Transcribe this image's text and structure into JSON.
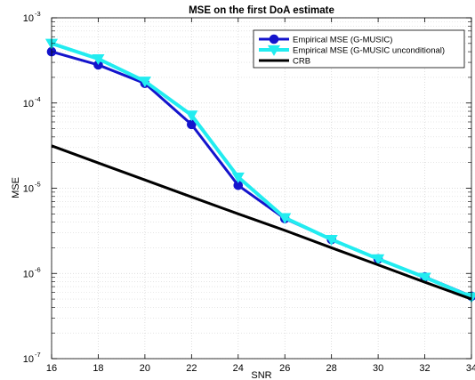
{
  "chart_data": {
    "type": "line",
    "title": "MSE on the first DoA estimate",
    "xlabel": "SNR",
    "ylabel": "MSE",
    "xlim": [
      16,
      34
    ],
    "ylim": [
      1e-07,
      0.001
    ],
    "yscale": "log",
    "grid": true,
    "minor_grid": true,
    "legend_position": "top-right",
    "x_ticks": [
      16,
      18,
      20,
      22,
      24,
      26,
      28,
      30,
      32,
      34
    ],
    "y_ticks": [
      {
        "value": 1e-07,
        "base": "10",
        "exp": "-7"
      },
      {
        "value": 1e-06,
        "base": "10",
        "exp": "-6"
      },
      {
        "value": 1e-05,
        "base": "10",
        "exp": "-5"
      },
      {
        "value": 0.0001,
        "base": "10",
        "exp": "-4"
      },
      {
        "value": 0.001,
        "base": "10",
        "exp": "-3"
      }
    ],
    "x": [
      16,
      18,
      20,
      22,
      24,
      26,
      28,
      30,
      32,
      34
    ],
    "series": [
      {
        "name": "Empirical MSE (G-MUSIC)",
        "color": "#1414cc",
        "marker": "circle",
        "line_width": 3,
        "values": [
          0.0004,
          0.00028,
          0.00017,
          5.6e-05,
          1.08e-05,
          4.4e-06,
          2.5e-06,
          1.48e-06,
          9.1e-07,
          5.4e-07
        ]
      },
      {
        "name": "Empirical MSE (G-MUSIC unconditional)",
        "color": "#22ecf0",
        "marker": "triangle-down",
        "line_width": 4,
        "values": [
          0.0005,
          0.00033,
          0.00018,
          7.2e-05,
          1.35e-05,
          4.5e-06,
          2.5e-06,
          1.48e-06,
          9e-07,
          5.3e-07
        ]
      },
      {
        "name": "CRB",
        "color": "#000000",
        "marker": "none",
        "line_width": 3,
        "values": [
          3.15e-05,
          1.98e-05,
          1.25e-05,
          7.9e-06,
          5e-06,
          3.2e-06,
          2e-06,
          1.26e-06,
          7.9e-07,
          5e-07
        ]
      }
    ]
  }
}
